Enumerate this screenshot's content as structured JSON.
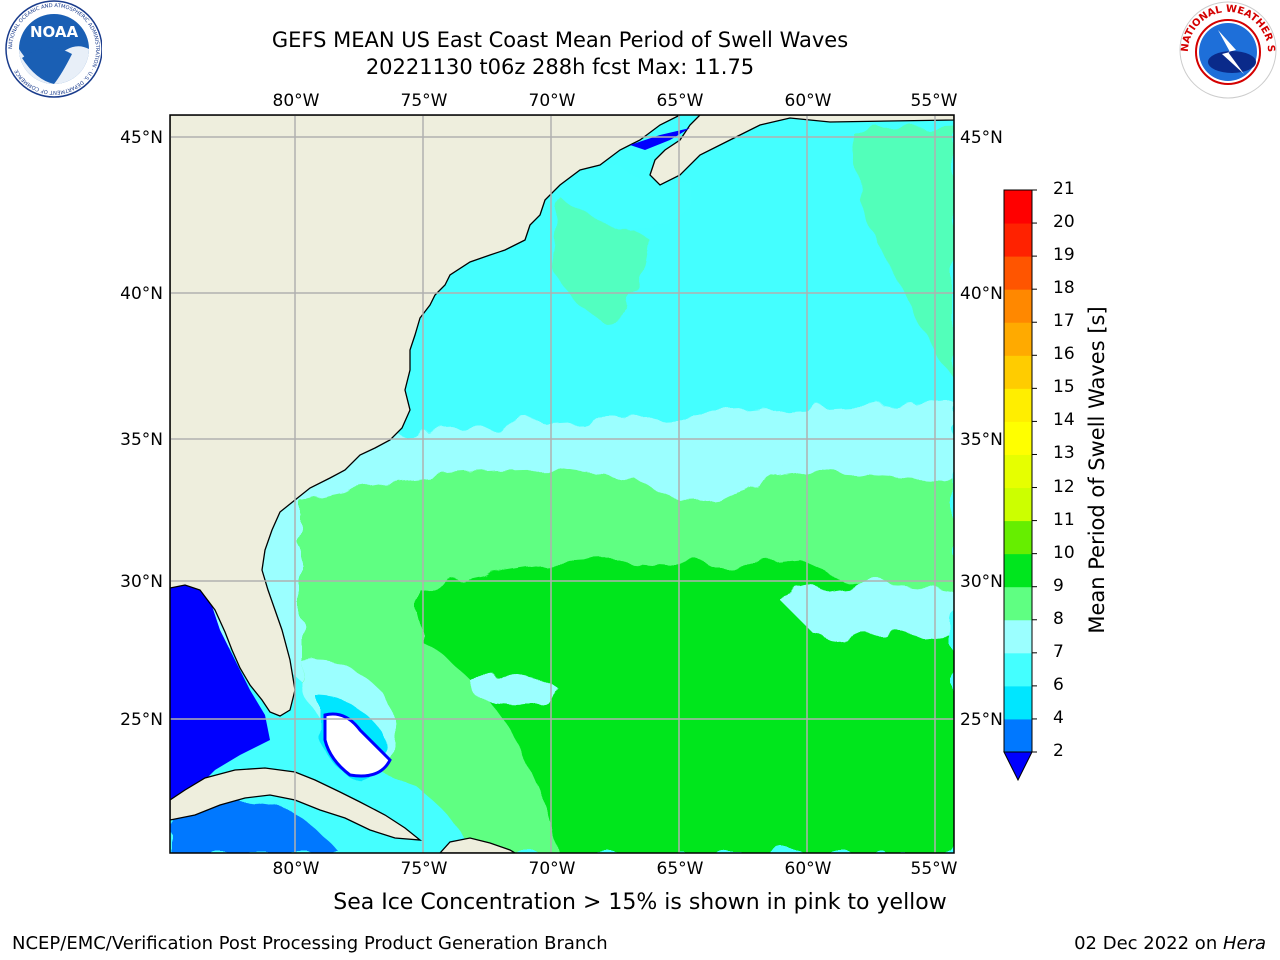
{
  "header": {
    "title_line1": "GEFS MEAN US East Coast Mean Period of Swell Waves",
    "title_line2": "20221130 t06z 288h fcst   Max: 11.75"
  },
  "logos": {
    "left": {
      "icon": "noaa-logo-icon",
      "text": "NOAA",
      "ring_text": "NATIONAL OCEANIC AND ATMOSPHERIC ADMINISTRATION · U.S. DEPARTMENT OF COMMERCE"
    },
    "right": {
      "icon": "nws-logo-icon",
      "ring_text": "NATIONAL WEATHER SERVICE"
    }
  },
  "map": {
    "lon_labels": [
      "80°W",
      "75°W",
      "70°W",
      "65°W",
      "60°W",
      "55°W"
    ],
    "lat_labels": [
      "45°N",
      "40°N",
      "35°N",
      "30°N",
      "25°N"
    ],
    "lon_range": [
      -85,
      -54.5
    ],
    "lat_range": [
      20.5,
      46
    ],
    "colors": {
      "land": "#eeeedd",
      "grid": "#b0b0b0",
      "coast": "#000000"
    }
  },
  "colorbar": {
    "title": "Mean Period of Swell Waves [s]",
    "levels": [
      "2",
      "4",
      "6",
      "7",
      "8",
      "9",
      "10",
      "11",
      "12",
      "13",
      "14",
      "15",
      "16",
      "17",
      "18",
      "19",
      "20",
      "21"
    ],
    "colors": [
      "#0078ff",
      "#00e6ff",
      "#44ffff",
      "#9bffff",
      "#5fff82",
      "#00e61e",
      "#66ee00",
      "#ccff00",
      "#e6ff00",
      "#ffff00",
      "#ffee00",
      "#ffcc00",
      "#ffaa00",
      "#ff8800",
      "#ff5500",
      "#ff2200",
      "#ff0000"
    ],
    "under_color": "#0000ff"
  },
  "notes": {
    "ice": "Sea Ice Concentration > 15% is shown in pink to yellow",
    "footer_left": "NCEP/EMC/Verification Post Processing Product Generation Branch",
    "footer_right_date": "02 Dec 2022 on ",
    "footer_right_host": "Hera"
  }
}
